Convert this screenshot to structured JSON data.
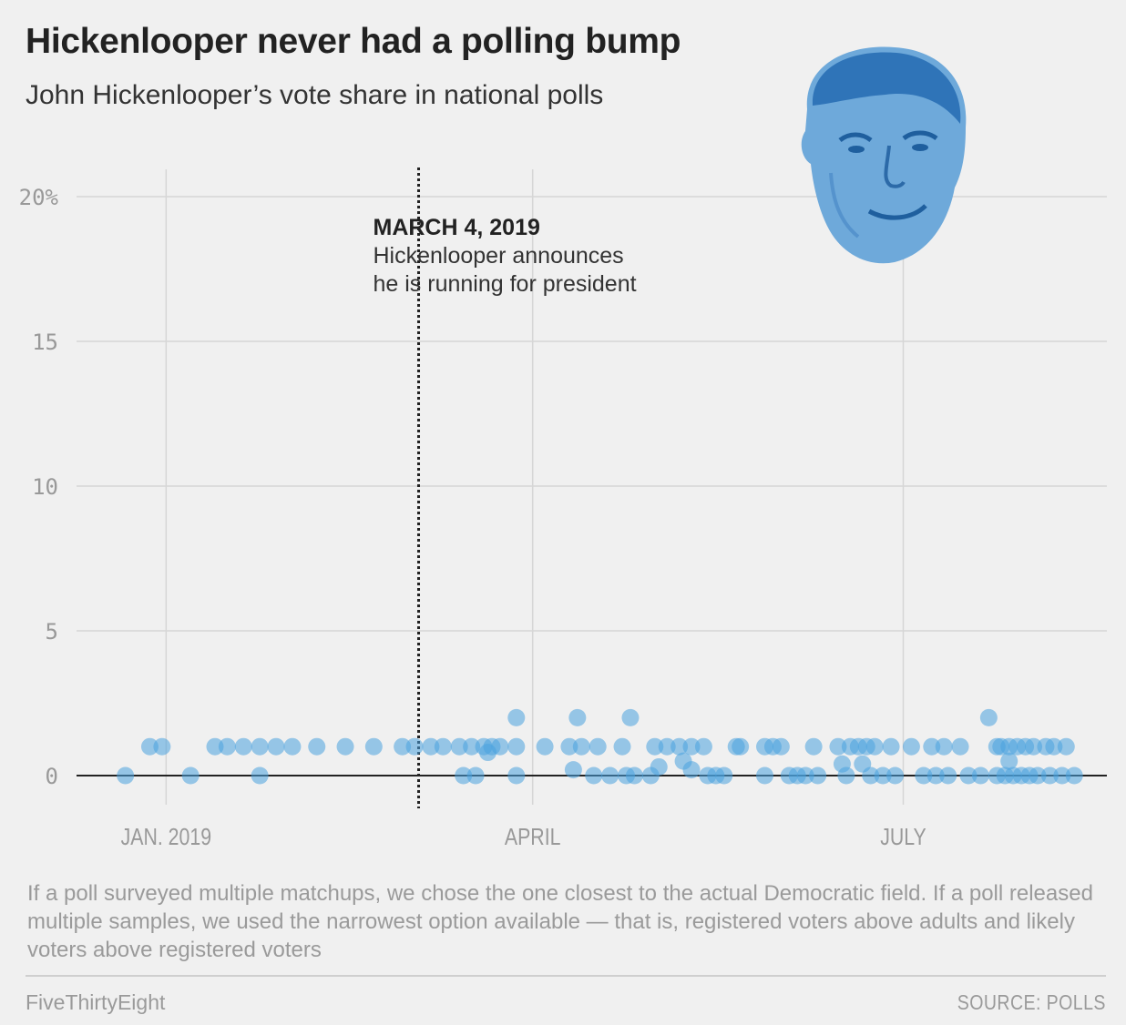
{
  "header": {
    "title": "Hickenlooper never had a polling bump",
    "subtitle": "John Hickenlooper’s vote share in national polls"
  },
  "footer": {
    "note": "If a poll surveyed multiple matchups, we chose the one closest to the actual Democratic field. If a poll released multiple samples, we used the narrowest option available — that is, registered voters above adults and likely voters above registered voters",
    "brand": "FiveThirtyEight",
    "source": "SOURCE: POLLS"
  },
  "chart_data": {
    "type": "scatter",
    "title": "Hickenlooper never had a polling bump",
    "subtitle": "John Hickenlooper’s vote share in national polls",
    "x_axis": {
      "type": "date",
      "range": [
        "2018-12-10",
        "2019-08-20"
      ],
      "ticks": [
        {
          "date": "2019-01-01",
          "label": "JAN. 2019"
        },
        {
          "date": "2019-04-01",
          "label": "APRIL"
        },
        {
          "date": "2019-07-01",
          "label": "JULY"
        }
      ]
    },
    "y_axis": {
      "range": [
        0,
        20
      ],
      "ticks": [
        {
          "value": 0,
          "label": "0"
        },
        {
          "value": 5,
          "label": "5"
        },
        {
          "value": 10,
          "label": "10"
        },
        {
          "value": 15,
          "label": "15"
        },
        {
          "value": 20,
          "label": "20%"
        }
      ]
    },
    "grid": true,
    "annotation": {
      "date": "2019-03-04",
      "label": "MARCH 4, 2019",
      "text_lines": [
        "Hickenlooper announces",
        "he is running for president"
      ]
    },
    "colors": {
      "point": "#4aa3df",
      "axis": "#222222",
      "grid": "#d6d6d6"
    },
    "points": [
      {
        "x": "2018-12-22",
        "y": 0
      },
      {
        "x": "2018-12-28",
        "y": 1
      },
      {
        "x": "2018-12-31",
        "y": 1
      },
      {
        "x": "2019-01-07",
        "y": 0
      },
      {
        "x": "2019-01-13",
        "y": 1
      },
      {
        "x": "2019-01-16",
        "y": 1
      },
      {
        "x": "2019-01-20",
        "y": 1
      },
      {
        "x": "2019-01-24",
        "y": 0
      },
      {
        "x": "2019-01-24",
        "y": 1
      },
      {
        "x": "2019-01-28",
        "y": 1
      },
      {
        "x": "2019-02-01",
        "y": 1
      },
      {
        "x": "2019-02-07",
        "y": 1
      },
      {
        "x": "2019-02-14",
        "y": 1
      },
      {
        "x": "2019-02-21",
        "y": 1
      },
      {
        "x": "2019-02-28",
        "y": 1
      },
      {
        "x": "2019-03-03",
        "y": 1
      },
      {
        "x": "2019-03-07",
        "y": 1
      },
      {
        "x": "2019-03-10",
        "y": 1
      },
      {
        "x": "2019-03-14",
        "y": 1
      },
      {
        "x": "2019-03-15",
        "y": 0
      },
      {
        "x": "2019-03-17",
        "y": 1
      },
      {
        "x": "2019-03-18",
        "y": 0
      },
      {
        "x": "2019-03-20",
        "y": 1
      },
      {
        "x": "2019-03-21",
        "y": 0.8
      },
      {
        "x": "2019-03-22",
        "y": 1
      },
      {
        "x": "2019-03-24",
        "y": 1
      },
      {
        "x": "2019-03-28",
        "y": 1
      },
      {
        "x": "2019-03-28",
        "y": 2
      },
      {
        "x": "2019-03-28",
        "y": 0
      },
      {
        "x": "2019-04-04",
        "y": 1
      },
      {
        "x": "2019-04-10",
        "y": 1
      },
      {
        "x": "2019-04-11",
        "y": 0.2
      },
      {
        "x": "2019-04-12",
        "y": 2
      },
      {
        "x": "2019-04-13",
        "y": 1
      },
      {
        "x": "2019-04-16",
        "y": 0
      },
      {
        "x": "2019-04-17",
        "y": 1
      },
      {
        "x": "2019-04-20",
        "y": 0
      },
      {
        "x": "2019-04-23",
        "y": 1
      },
      {
        "x": "2019-04-24",
        "y": 0
      },
      {
        "x": "2019-04-25",
        "y": 2
      },
      {
        "x": "2019-04-26",
        "y": 0
      },
      {
        "x": "2019-04-30",
        "y": 0
      },
      {
        "x": "2019-05-01",
        "y": 1
      },
      {
        "x": "2019-05-02",
        "y": 0.3
      },
      {
        "x": "2019-05-04",
        "y": 1
      },
      {
        "x": "2019-05-07",
        "y": 1
      },
      {
        "x": "2019-05-08",
        "y": 0.5
      },
      {
        "x": "2019-05-10",
        "y": 1
      },
      {
        "x": "2019-05-10",
        "y": 0.2
      },
      {
        "x": "2019-05-13",
        "y": 1
      },
      {
        "x": "2019-05-14",
        "y": 0
      },
      {
        "x": "2019-05-16",
        "y": 0
      },
      {
        "x": "2019-05-18",
        "y": 0
      },
      {
        "x": "2019-05-21",
        "y": 1
      },
      {
        "x": "2019-05-22",
        "y": 1
      },
      {
        "x": "2019-05-28",
        "y": 1
      },
      {
        "x": "2019-05-28",
        "y": 0
      },
      {
        "x": "2019-05-30",
        "y": 1
      },
      {
        "x": "2019-06-01",
        "y": 1
      },
      {
        "x": "2019-06-03",
        "y": 0
      },
      {
        "x": "2019-06-05",
        "y": 0
      },
      {
        "x": "2019-06-07",
        "y": 0
      },
      {
        "x": "2019-06-09",
        "y": 1
      },
      {
        "x": "2019-06-10",
        "y": 0
      },
      {
        "x": "2019-06-15",
        "y": 1
      },
      {
        "x": "2019-06-16",
        "y": 0.4
      },
      {
        "x": "2019-06-17",
        "y": 0
      },
      {
        "x": "2019-06-18",
        "y": 1
      },
      {
        "x": "2019-06-20",
        "y": 1
      },
      {
        "x": "2019-06-21",
        "y": 0.4
      },
      {
        "x": "2019-06-22",
        "y": 1
      },
      {
        "x": "2019-06-23",
        "y": 0
      },
      {
        "x": "2019-06-24",
        "y": 1
      },
      {
        "x": "2019-06-26",
        "y": 0
      },
      {
        "x": "2019-06-28",
        "y": 1
      },
      {
        "x": "2019-06-29",
        "y": 0
      },
      {
        "x": "2019-07-03",
        "y": 1
      },
      {
        "x": "2019-07-06",
        "y": 0
      },
      {
        "x": "2019-07-08",
        "y": 1
      },
      {
        "x": "2019-07-09",
        "y": 0
      },
      {
        "x": "2019-07-11",
        "y": 1
      },
      {
        "x": "2019-07-12",
        "y": 0
      },
      {
        "x": "2019-07-15",
        "y": 1
      },
      {
        "x": "2019-07-17",
        "y": 0
      },
      {
        "x": "2019-07-20",
        "y": 0
      },
      {
        "x": "2019-07-22",
        "y": 2
      },
      {
        "x": "2019-07-24",
        "y": 1
      },
      {
        "x": "2019-07-24",
        "y": 0
      },
      {
        "x": "2019-07-25",
        "y": 1
      },
      {
        "x": "2019-07-26",
        "y": 0
      },
      {
        "x": "2019-07-27",
        "y": 1
      },
      {
        "x": "2019-07-27",
        "y": 0.5
      },
      {
        "x": "2019-07-28",
        "y": 0
      },
      {
        "x": "2019-07-29",
        "y": 1
      },
      {
        "x": "2019-07-30",
        "y": 0
      },
      {
        "x": "2019-07-31",
        "y": 1
      },
      {
        "x": "2019-08-01",
        "y": 0
      },
      {
        "x": "2019-08-02",
        "y": 1
      },
      {
        "x": "2019-08-03",
        "y": 0
      },
      {
        "x": "2019-08-05",
        "y": 1
      },
      {
        "x": "2019-08-06",
        "y": 0
      },
      {
        "x": "2019-08-07",
        "y": 1
      },
      {
        "x": "2019-08-09",
        "y": 0
      },
      {
        "x": "2019-08-10",
        "y": 1
      },
      {
        "x": "2019-08-12",
        "y": 0
      }
    ]
  }
}
